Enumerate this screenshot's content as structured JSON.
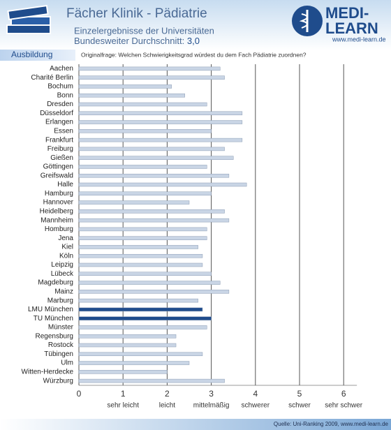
{
  "header": {
    "logo_top": "MEDI-",
    "logo_bottom": "LEARN",
    "url": "www.medi-learn.de",
    "section": "Ausbildung"
  },
  "chart_data": {
    "type": "barh",
    "title": "Fächer Klinik - Pädiatrie",
    "subtitle": "Einzelergebnisse der Universitäten",
    "average_label": "Bundesweiter Durchschnitt:",
    "average_value": "3,0",
    "question": "Originalfrage: Welchen Schwierigkeitsgrad würdest du dem Fach Pädiatrie zuordnen?",
    "categories": [
      "Aachen",
      "Charité Berlin",
      "Bochum",
      "Bonn",
      "Dresden",
      "Düsseldorf",
      "Erlangen",
      "Essen",
      "Frankfurt",
      "Freiburg",
      "Gießen",
      "Göttingen",
      "Greifswald",
      "Halle",
      "Hamburg",
      "Hannover",
      "Heidelberg",
      "Mannheim",
      "Homburg",
      "Jena",
      "Kiel",
      "Köln",
      "Leipzig",
      "Lübeck",
      "Magdeburg",
      "Mainz",
      "Marburg",
      "LMU München",
      "TU München",
      "Münster",
      "Regensburg",
      "Rostock",
      "Tübingen",
      "Ulm",
      "Witten-Herdecke",
      "Würzburg"
    ],
    "values": [
      3.2,
      3.3,
      2.1,
      2.4,
      2.9,
      3.7,
      3.7,
      3.0,
      3.7,
      3.3,
      3.5,
      2.9,
      3.4,
      3.8,
      3.0,
      2.5,
      3.3,
      3.4,
      2.9,
      2.9,
      2.7,
      2.8,
      2.8,
      3.0,
      3.2,
      3.4,
      2.7,
      2.8,
      3.0,
      2.9,
      2.2,
      2.2,
      2.8,
      2.5,
      2.0,
      3.3
    ],
    "colors": [
      "#c9d5e5",
      "#c9d5e5",
      "#c9d5e5",
      "#c9d5e5",
      "#c9d5e5",
      "#c9d5e5",
      "#c9d5e5",
      "#c9d5e5",
      "#c9d5e5",
      "#c9d5e5",
      "#c9d5e5",
      "#c9d5e5",
      "#c9d5e5",
      "#c9d5e5",
      "#c9d5e5",
      "#c9d5e5",
      "#c9d5e5",
      "#c9d5e5",
      "#c9d5e5",
      "#c9d5e5",
      "#c9d5e5",
      "#c9d5e5",
      "#c9d5e5",
      "#c9d5e5",
      "#c9d5e5",
      "#c9d5e5",
      "#c9d5e5",
      "#1f4c8c",
      "#1f4c8c",
      "#c9d5e5",
      "#c9d5e5",
      "#c9d5e5",
      "#c9d5e5",
      "#c9d5e5",
      "#c9d5e5",
      "#c9d5e5"
    ],
    "xlim": [
      0,
      6.3
    ],
    "xticks": [
      0,
      1,
      2,
      3,
      4,
      5,
      6
    ],
    "xscale_labels": [
      {
        "value": 1,
        "label": "sehr leicht"
      },
      {
        "value": 2,
        "label": "leicht"
      },
      {
        "value": 3,
        "label": "mittelmäßig"
      },
      {
        "value": 4,
        "label": "schwerer"
      },
      {
        "value": 5,
        "label": "schwer"
      },
      {
        "value": 6,
        "label": "sehr schwer"
      }
    ],
    "grid": true
  },
  "footer": {
    "source": "Quelle: Uni-Ranking 2009, www.medi-learn.de"
  }
}
